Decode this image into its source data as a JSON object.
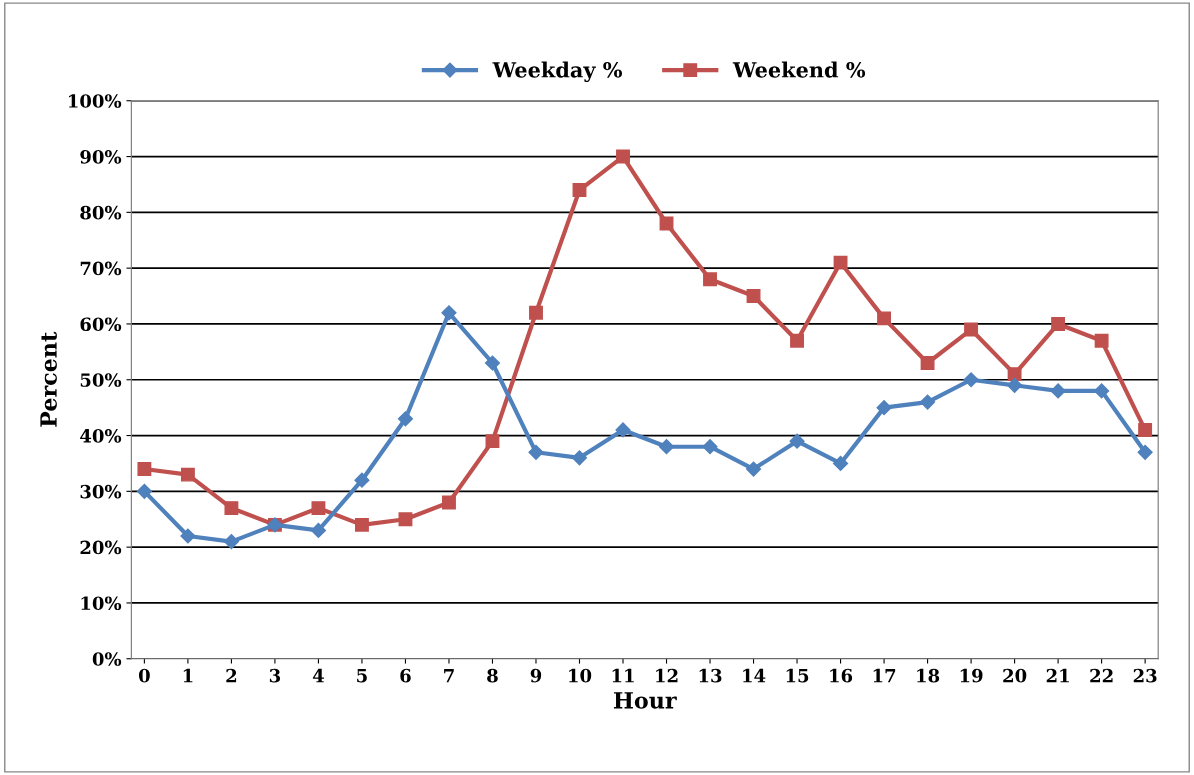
{
  "chart_data": {
    "type": "line",
    "xlabel": "Hour",
    "ylabel": "Percent",
    "categories": [
      "0",
      "1",
      "2",
      "3",
      "4",
      "5",
      "6",
      "7",
      "8",
      "9",
      "10",
      "11",
      "12",
      "13",
      "14",
      "15",
      "16",
      "17",
      "18",
      "19",
      "20",
      "21",
      "22",
      "23"
    ],
    "series": [
      {
        "name": "Weekday %",
        "color": "#4f81bd",
        "marker": "diamond",
        "values": [
          30,
          22,
          21,
          24,
          23,
          32,
          43,
          62,
          53,
          37,
          36,
          41,
          38,
          38,
          34,
          39,
          35,
          45,
          46,
          50,
          49,
          48,
          48,
          37
        ]
      },
      {
        "name": "Weekend %",
        "color": "#c0504d",
        "marker": "square",
        "values": [
          34,
          33,
          27,
          24,
          27,
          24,
          25,
          28,
          39,
          62,
          84,
          90,
          78,
          68,
          65,
          57,
          71,
          61,
          53,
          59,
          51,
          60,
          57,
          41
        ]
      }
    ],
    "ylim": [
      0,
      100
    ],
    "yticks": [
      {
        "value": 0,
        "label": "0%"
      },
      {
        "value": 10,
        "label": "10%"
      },
      {
        "value": 20,
        "label": "20%"
      },
      {
        "value": 30,
        "label": "30%"
      },
      {
        "value": 40,
        "label": "40%"
      },
      {
        "value": 50,
        "label": "50%"
      },
      {
        "value": 60,
        "label": "60%"
      },
      {
        "value": 70,
        "label": "70%"
      },
      {
        "value": 80,
        "label": "80%"
      },
      {
        "value": 90,
        "label": "90%"
      },
      {
        "value": 100,
        "label": "100%"
      }
    ],
    "grid": "y",
    "legend": "top",
    "line_style": "solid"
  }
}
